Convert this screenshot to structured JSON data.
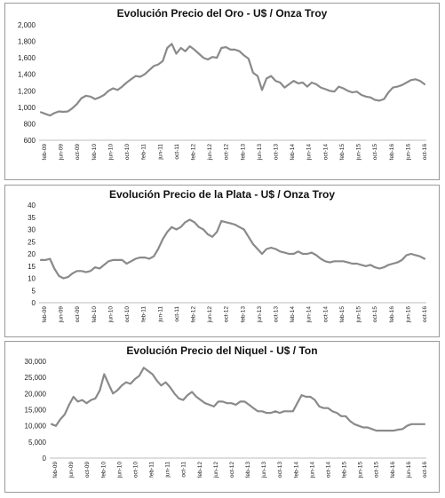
{
  "chart_data": [
    {
      "type": "line",
      "title": "Evolución Precio del Oro - U$ / Onza Troy",
      "ylim": [
        600,
        2000
      ],
      "yticks": [
        "600",
        "800",
        "1,000",
        "1,200",
        "1,400",
        "1,600",
        "1,800",
        "2,000"
      ],
      "yticks_values": [
        600,
        800,
        1000,
        1200,
        1400,
        1600,
        1800,
        2000
      ],
      "grid": false,
      "x_tick_labels": [
        "feb-09",
        "jun-09",
        "oct-09",
        "feb-10",
        "jun-10",
        "oct-10",
        "feb-11",
        "jun-11",
        "oct-11",
        "feb-12",
        "jun-12",
        "oct-12",
        "feb-13",
        "jun-13",
        "oct-13",
        "feb-14",
        "jun-14",
        "oct-14",
        "feb-15",
        "jun-15",
        "oct-15",
        "feb-16",
        "jun-16",
        "oct-16"
      ],
      "series": [
        {
          "color": "#8a8a8a",
          "values": [
            940,
            920,
            900,
            930,
            950,
            945,
            950,
            990,
            1040,
            1110,
            1140,
            1130,
            1100,
            1120,
            1150,
            1200,
            1230,
            1210,
            1250,
            1300,
            1340,
            1380,
            1370,
            1400,
            1450,
            1500,
            1520,
            1560,
            1720,
            1770,
            1650,
            1720,
            1680,
            1740,
            1700,
            1650,
            1600,
            1580,
            1610,
            1600,
            1720,
            1730,
            1700,
            1700,
            1680,
            1630,
            1590,
            1420,
            1380,
            1210,
            1350,
            1380,
            1320,
            1300,
            1240,
            1280,
            1320,
            1290,
            1300,
            1250,
            1300,
            1280,
            1240,
            1220,
            1200,
            1190,
            1250,
            1230,
            1200,
            1180,
            1190,
            1150,
            1130,
            1120,
            1090,
            1080,
            1100,
            1180,
            1240,
            1250,
            1270,
            1300,
            1330,
            1340,
            1320,
            1280
          ]
        }
      ]
    },
    {
      "type": "line",
      "title": "Evolución Precio de la Plata - U$ / Onza Troy",
      "ylim": [
        0,
        40
      ],
      "yticks": [
        "0",
        "5",
        "10",
        "15",
        "20",
        "25",
        "30",
        "35",
        "40"
      ],
      "yticks_values": [
        0,
        5,
        10,
        15,
        20,
        25,
        30,
        35,
        40
      ],
      "grid": false,
      "x_tick_labels": [
        "feb-09",
        "jun-09",
        "oct-09",
        "feb-10",
        "jun-10",
        "oct-10",
        "feb-11",
        "jun-11",
        "oct-11",
        "feb-12",
        "jun-12",
        "oct-12",
        "feb-13",
        "jun-13",
        "oct-13",
        "feb-14",
        "jun-14",
        "oct-14",
        "feb-15",
        "jun-15",
        "oct-15",
        "feb-16",
        "jun-16",
        "oct-16"
      ],
      "series": [
        {
          "color": "#8a8a8a",
          "values": [
            17.5,
            17.5,
            18,
            14,
            11,
            10,
            10.5,
            12,
            13,
            13,
            12.5,
            13,
            14.5,
            14,
            15.5,
            17,
            17.5,
            17.5,
            17.5,
            16,
            17,
            18,
            18.5,
            18.5,
            18,
            19,
            22,
            26,
            29,
            31,
            30,
            31,
            33,
            34,
            33,
            31,
            30,
            28,
            27,
            29,
            33.5,
            33,
            32.5,
            32,
            31,
            30,
            27,
            24,
            22,
            20,
            22,
            22.5,
            22,
            21,
            20.5,
            20,
            20,
            21,
            20,
            20,
            20.5,
            19.5,
            18,
            17,
            16.5,
            17,
            17,
            17,
            16.5,
            16,
            16,
            15.5,
            15,
            15.5,
            14.5,
            14,
            14.5,
            15.5,
            16,
            16.5,
            17.5,
            19.5,
            20,
            19.5,
            19,
            18
          ]
        }
      ]
    },
    {
      "type": "line",
      "title": "Evolución Precio del Niquel - U$ / Ton",
      "ylim": [
        0,
        30000
      ],
      "yticks": [
        "0",
        "5,000",
        "10,000",
        "15,000",
        "20,000",
        "25,000",
        "30,000"
      ],
      "yticks_values": [
        0,
        5000,
        10000,
        15000,
        20000,
        25000,
        30000
      ],
      "grid": false,
      "x_tick_labels": [
        "feb-09",
        "jun-09",
        "oct-09",
        "feb-10",
        "jun-10",
        "oct-10",
        "feb-11",
        "jun-11",
        "oct-11",
        "feb-12",
        "jun-12",
        "oct-12",
        "feb-13",
        "jun-13",
        "oct-13",
        "feb-14",
        "jun-14",
        "oct-14",
        "feb-15",
        "jun-15",
        "oct-15",
        "feb-16",
        "jun-16",
        "oct-16"
      ],
      "series": [
        {
          "color": "#8a8a8a",
          "values": [
            10500,
            10000,
            12000,
            13500,
            16500,
            19000,
            17500,
            18000,
            17000,
            18000,
            18500,
            21000,
            26000,
            23000,
            20000,
            21000,
            22500,
            23500,
            23000,
            24500,
            25500,
            28000,
            27000,
            26000,
            24000,
            22500,
            23500,
            22000,
            20000,
            18500,
            18000,
            19500,
            20500,
            19000,
            18000,
            17000,
            16500,
            16000,
            17500,
            17500,
            17000,
            17000,
            16500,
            17500,
            17500,
            16500,
            15500,
            14500,
            14500,
            14000,
            14000,
            14500,
            14000,
            14500,
            14500,
            14500,
            17000,
            19500,
            19000,
            19000,
            18000,
            16000,
            15500,
            15500,
            14500,
            14000,
            13000,
            13000,
            11500,
            10500,
            10000,
            9500,
            9500,
            9000,
            8500,
            8500,
            8500,
            8500,
            8500,
            8800,
            9000,
            10000,
            10500,
            10500,
            10500,
            10500
          ]
        }
      ]
    }
  ]
}
